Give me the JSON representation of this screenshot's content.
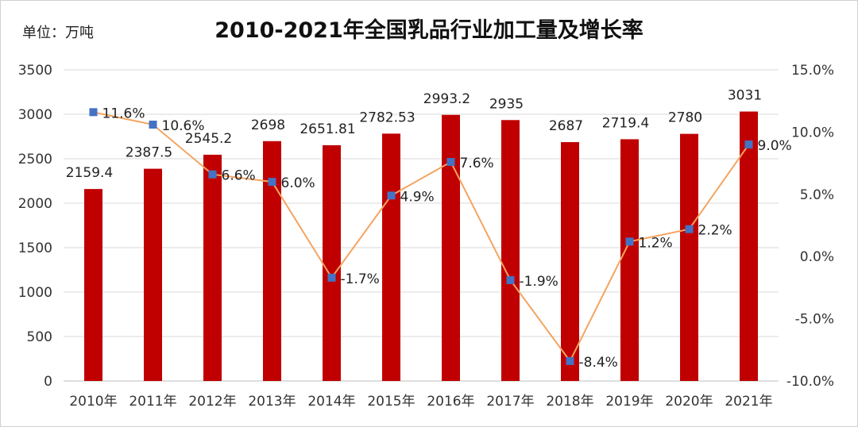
{
  "chart_data": {
    "type": "bar",
    "title": "2010-2021年全国乳品行业加工量及增长率",
    "unit_label": "单位：万吨",
    "categories": [
      "2010年",
      "2011年",
      "2012年",
      "2013年",
      "2014年",
      "2015年",
      "2016年",
      "2017年",
      "2018年",
      "2019年",
      "2020年",
      "2021年"
    ],
    "series": [
      {
        "name": "加工量",
        "type": "bar",
        "axis": "left",
        "color": "#c00000",
        "values": [
          2159.4,
          2387.5,
          2545.2,
          2698,
          2651.81,
          2782.53,
          2993.2,
          2935,
          2687,
          2719.4,
          2780,
          3031
        ],
        "labels": [
          "2159.4",
          "2387.5",
          "2545.2",
          "2698",
          "2651.81",
          "2782.53",
          "2993.2",
          "2935",
          "2687",
          "2719.4",
          "2780",
          "3031"
        ]
      },
      {
        "name": "增长率",
        "type": "line",
        "axis": "right",
        "color": "#f4a460",
        "marker_color": "#4472c4",
        "values": [
          11.6,
          10.6,
          6.6,
          6.0,
          -1.7,
          4.9,
          7.6,
          -1.9,
          -8.4,
          1.2,
          2.2,
          9.0
        ],
        "labels": [
          "11.6%",
          "10.6%",
          "6.6%",
          "6.0%",
          "-1.7%",
          "4.9%",
          "7.6%",
          "-1.9%",
          "-8.4%",
          "1.2%",
          "2.2%",
          "9.0%"
        ]
      }
    ],
    "left_axis": {
      "min": 0,
      "max": 3500,
      "ticks": [
        "0",
        "500",
        "1000",
        "1500",
        "2000",
        "2500",
        "3000",
        "3500"
      ]
    },
    "right_axis": {
      "min": -10,
      "max": 15,
      "ticks": [
        "-10.0%",
        "-5.0%",
        "0.0%",
        "5.0%",
        "10.0%",
        "15.0%"
      ]
    },
    "grid": true,
    "legend": "none"
  }
}
